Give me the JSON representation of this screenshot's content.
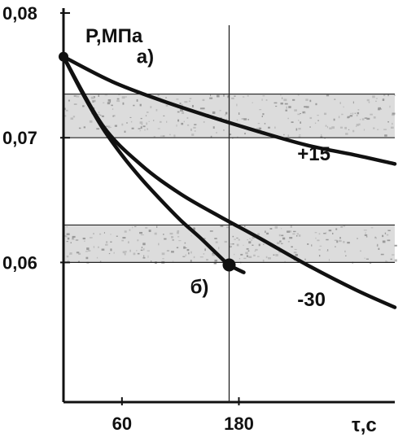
{
  "chart_data": {
    "type": "line",
    "title": "",
    "ylabel": "P,МПа",
    "xlabel": "τ,с",
    "xlim": [
      0,
      340
    ],
    "ylim": [
      0.0488,
      0.08
    ],
    "y_ticks": [
      {
        "value": 0.08,
        "label": "0,08"
      },
      {
        "value": 0.07,
        "label": "0,07"
      },
      {
        "value": 0.06,
        "label": "0,06"
      }
    ],
    "x_ticks": [
      {
        "value": 60,
        "label": "60"
      },
      {
        "value": 180,
        "label": "180"
      }
    ],
    "bands": [
      {
        "lower": 0.07,
        "upper": 0.0735
      },
      {
        "lower": 0.06,
        "upper": 0.063
      }
    ],
    "vertical_line_x": 170,
    "series": [
      {
        "name": "+15",
        "x": [
          0,
          50,
          100,
          150,
          200,
          250,
          300,
          340
        ],
        "y": [
          0.0765,
          0.0745,
          0.073,
          0.0717,
          0.0705,
          0.0694,
          0.0686,
          0.0679
        ]
      },
      {
        "name": "-30",
        "x": [
          0,
          40,
          80,
          120,
          160,
          200,
          250,
          300,
          340
        ],
        "y": [
          0.0765,
          0.071,
          0.0678,
          0.0655,
          0.0637,
          0.062,
          0.0598,
          0.0578,
          0.0564
        ]
      },
      {
        "name": "б)",
        "x": [
          0,
          20,
          40,
          60,
          80,
          100,
          120,
          140,
          160,
          170,
          185
        ],
        "y": [
          0.0765,
          0.0735,
          0.0708,
          0.0686,
          0.0667,
          0.065,
          0.0634,
          0.062,
          0.0605,
          0.0598,
          0.0592
        ]
      }
    ],
    "annotations": [
      {
        "text": "а)",
        "x": 75,
        "y": 0.076
      },
      {
        "text": "+15",
        "x": 240,
        "y": 0.0682
      },
      {
        "text": "б)",
        "x": 130,
        "y": 0.0575
      },
      {
        "text": "-30",
        "x": 240,
        "y": 0.0565
      }
    ],
    "markers": [
      {
        "x": 0,
        "y": 0.0765
      },
      {
        "x": 170,
        "y": 0.0598
      }
    ],
    "grid": false,
    "legend": "none"
  }
}
